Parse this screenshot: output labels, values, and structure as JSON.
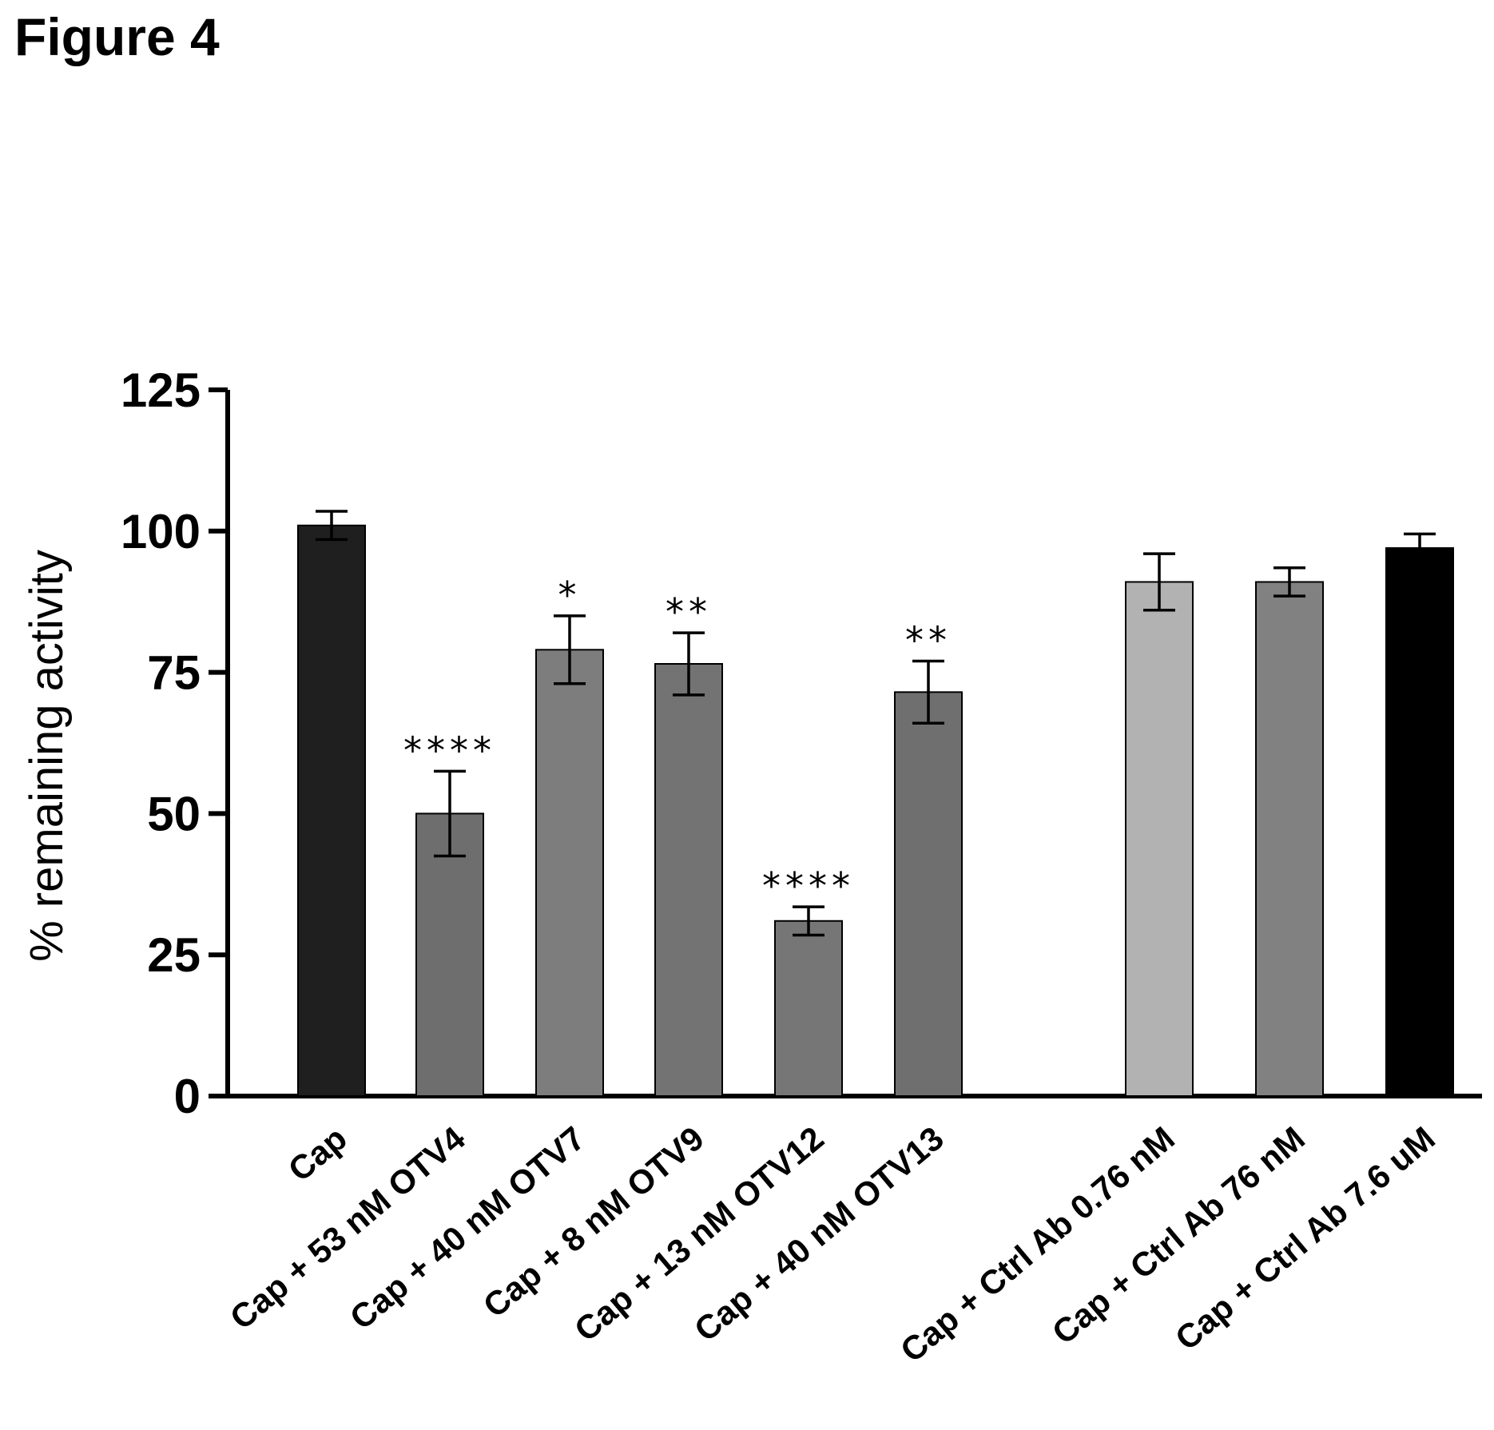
{
  "figure_label": "Figure 4",
  "chart_data": {
    "type": "bar",
    "title": "",
    "xlabel": "",
    "ylabel": "% remaining activity",
    "ylim": [
      0,
      125
    ],
    "yticks": [
      0,
      25,
      50,
      75,
      100,
      125
    ],
    "grid": false,
    "legend": "none",
    "categories": [
      "Cap",
      "Cap + 53 nM OTV4",
      "Cap + 40 nM OTV7",
      "Cap + 8 nM OTV9",
      "Cap + 13 nM OTV12",
      "Cap + 40 nM OTV13",
      "Cap + Ctrl Ab 0.76 nM",
      "Cap + Ctrl Ab 76 nM",
      "Cap + Ctrl Ab 7.6 uM"
    ],
    "values": [
      101,
      50,
      79,
      76.5,
      31,
      71.5,
      91,
      91,
      97
    ],
    "errors": [
      2.5,
      7.5,
      6,
      5.5,
      2.5,
      5.5,
      5,
      2.5,
      2.5
    ],
    "significance": [
      "",
      "****",
      "*",
      "**",
      "****",
      "**",
      "",
      "",
      ""
    ],
    "colors": [
      "#1f1f1f",
      "#6e6e6e",
      "#7d7d7d",
      "#737373",
      "#767676",
      "#6f6f6f",
      "#b2b2b2",
      "#818181",
      "#000000"
    ]
  }
}
